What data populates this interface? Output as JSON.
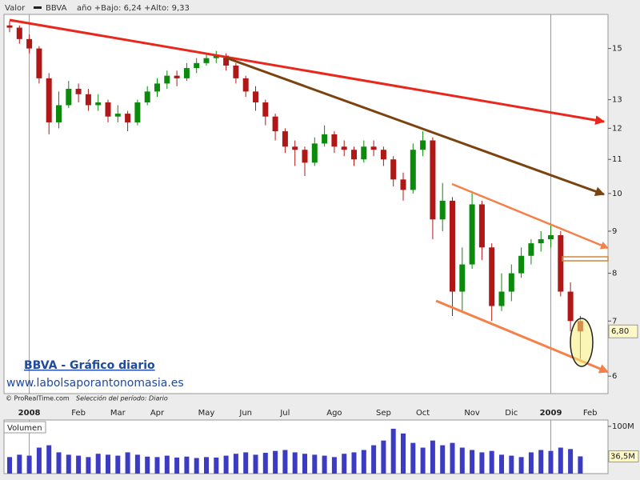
{
  "header": {
    "label": "Valor",
    "symbol": "BBVA",
    "range": "año +Bajo: 6,24 +Alto: 9,33"
  },
  "overlay": {
    "title": "BBVA - Gráfico diario",
    "site": "www.labolsaporantonomasia.es",
    "credit": "© ProRealTime.com",
    "period": "Selección del período: Diario"
  },
  "chart_data": [
    {
      "type": "candlestick",
      "log_scale": true,
      "up_color": "#0b8a0b",
      "down_color": "#b01818",
      "categories": [
        null,
        null,
        "2008",
        null,
        null,
        null,
        null,
        "Feb",
        null,
        null,
        null,
        "Mar",
        null,
        null,
        null,
        "Apr",
        null,
        null,
        null,
        null,
        "May",
        null,
        null,
        null,
        "Jun",
        null,
        null,
        null,
        "Jul",
        null,
        null,
        null,
        null,
        "Ago",
        null,
        null,
        null,
        null,
        "Sep",
        null,
        null,
        null,
        "Oct",
        null,
        null,
        null,
        null,
        "Nov",
        null,
        null,
        null,
        "Dic",
        null,
        null,
        null,
        "2009",
        null,
        null,
        null,
        "Feb"
      ],
      "open": [
        16.0,
        15.9,
        15.4,
        15.0,
        13.8,
        12.2,
        12.8,
        13.4,
        13.2,
        12.8,
        12.9,
        12.4,
        12.5,
        12.2,
        12.9,
        13.3,
        13.6,
        13.9,
        13.8,
        14.2,
        14.4,
        14.6,
        14.7,
        14.3,
        13.8,
        13.3,
        12.9,
        12.4,
        11.9,
        11.4,
        11.3,
        10.9,
        11.5,
        11.8,
        11.4,
        11.3,
        11.0,
        11.4,
        11.3,
        11.0,
        10.4,
        10.1,
        11.3,
        11.6,
        9.3,
        9.8,
        7.6,
        8.2,
        9.7,
        8.6,
        7.3,
        7.6,
        8.0,
        8.4,
        8.7,
        8.8,
        8.9,
        7.6,
        7.0,
        null
      ],
      "high": [
        16.2,
        16.0,
        15.6,
        15.1,
        14.0,
        13.3,
        13.7,
        13.6,
        13.4,
        13.2,
        13.0,
        12.8,
        12.6,
        13.0,
        13.5,
        13.8,
        14.1,
        14.1,
        14.4,
        14.6,
        14.8,
        14.9,
        14.8,
        14.4,
        13.9,
        13.5,
        13.0,
        12.5,
        12.0,
        11.6,
        11.4,
        11.7,
        12.1,
        11.9,
        11.6,
        11.4,
        11.6,
        11.6,
        11.4,
        11.1,
        10.6,
        11.5,
        11.9,
        11.7,
        10.3,
        9.9,
        8.6,
        10.0,
        9.8,
        8.7,
        8.0,
        8.2,
        8.6,
        8.8,
        9.0,
        9.2,
        9.0,
        7.8,
        7.1,
        null
      ],
      "low": [
        15.7,
        15.2,
        14.8,
        13.6,
        11.8,
        12.0,
        12.7,
        12.9,
        12.6,
        12.6,
        12.2,
        12.2,
        11.9,
        12.1,
        12.8,
        13.1,
        13.4,
        13.5,
        13.7,
        14.0,
        14.3,
        14.4,
        14.1,
        13.6,
        13.1,
        12.6,
        12.1,
        11.6,
        11.2,
        10.8,
        10.5,
        10.8,
        11.4,
        11.2,
        11.1,
        10.8,
        10.9,
        11.1,
        10.8,
        10.2,
        9.8,
        10.0,
        11.1,
        8.8,
        9.0,
        7.1,
        7.2,
        8.1,
        8.3,
        7.0,
        7.2,
        7.4,
        7.9,
        8.2,
        8.5,
        8.6,
        7.5,
        6.8,
        6.3,
        null
      ],
      "close": [
        15.9,
        15.4,
        15.0,
        13.8,
        12.2,
        12.8,
        13.4,
        13.2,
        12.8,
        12.9,
        12.4,
        12.5,
        12.2,
        12.9,
        13.3,
        13.6,
        13.9,
        13.8,
        14.2,
        14.4,
        14.6,
        14.7,
        14.3,
        13.8,
        13.3,
        12.9,
        12.4,
        11.9,
        11.4,
        11.3,
        10.9,
        11.5,
        11.8,
        11.4,
        11.3,
        11.0,
        11.4,
        11.3,
        11.0,
        10.4,
        10.1,
        11.3,
        11.6,
        9.3,
        9.8,
        7.6,
        8.2,
        9.7,
        8.6,
        7.3,
        7.6,
        8.0,
        8.4,
        8.7,
        8.8,
        8.9,
        7.6,
        7.0,
        6.8,
        null
      ],
      "last": {
        "value": 6.8,
        "label": "6,80"
      },
      "ylim": [
        5.74,
        16.5
      ],
      "yticks": [
        6,
        7,
        8,
        9,
        10,
        11,
        12,
        13,
        15
      ]
    },
    {
      "type": "bar",
      "title": "Volumen",
      "color": "#3b3bc4",
      "values": [
        35000000,
        40000000,
        38000000,
        55000000,
        60000000,
        45000000,
        40000000,
        38000000,
        35000000,
        42000000,
        40000000,
        38000000,
        45000000,
        40000000,
        36000000,
        35000000,
        38000000,
        34000000,
        36000000,
        33000000,
        35000000,
        34000000,
        38000000,
        42000000,
        45000000,
        40000000,
        44000000,
        48000000,
        50000000,
        45000000,
        42000000,
        40000000,
        38000000,
        35000000,
        42000000,
        45000000,
        50000000,
        60000000,
        70000000,
        95000000,
        85000000,
        65000000,
        55000000,
        70000000,
        60000000,
        65000000,
        55000000,
        50000000,
        45000000,
        48000000,
        40000000,
        38000000,
        35000000,
        45000000,
        50000000,
        48000000,
        55000000,
        52000000,
        36500000,
        null
      ],
      "last": {
        "value": 36500000,
        "label": "36,5M"
      },
      "ylim": [
        0,
        113500000
      ],
      "yticks": [
        {
          "value": 100000000,
          "label": "100M"
        }
      ]
    }
  ]
}
